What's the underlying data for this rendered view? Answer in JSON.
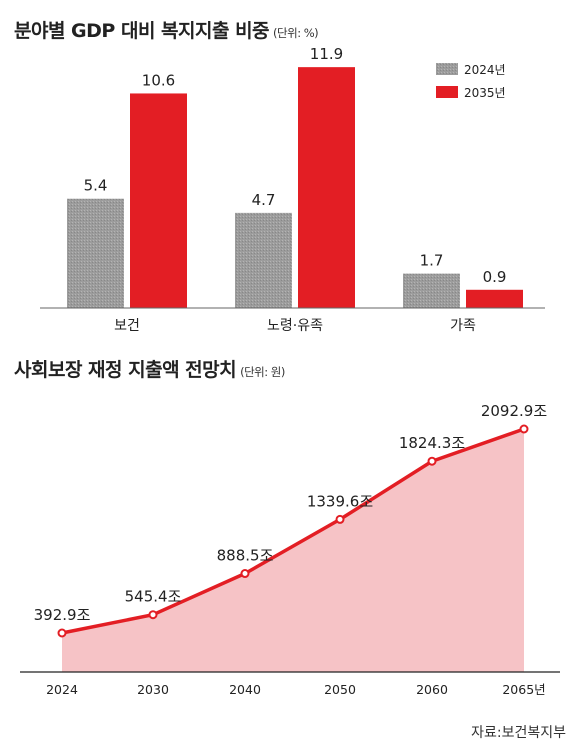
{
  "charts": {
    "bar": {
      "title": "분야별 GDP 대비 복지지출 비중",
      "unit": "(단위: %)"
    },
    "line": {
      "title": "사회보장 재정 지출액 전망치",
      "unit": "(단위: 원)"
    }
  },
  "chart_data": [
    {
      "type": "bar",
      "title": "분야별 GDP 대비 복지지출 비중",
      "unit": "(단위: %)",
      "categories": [
        "보건",
        "노령·유족",
        "가족"
      ],
      "series": [
        {
          "name": "2024년",
          "values": [
            5.4,
            4.7,
            1.7
          ],
          "color": "#9c9c9c"
        },
        {
          "name": "2035년",
          "values": [
            10.6,
            11.9,
            0.9
          ],
          "color": "#e31e24"
        }
      ],
      "ylim": [
        0,
        12.5
      ],
      "legend": "top-right",
      "grid": false
    },
    {
      "type": "area",
      "title": "사회보장 재정 지출액 전망치",
      "unit": "(단위: 원)",
      "x": [
        "2024",
        "2030",
        "2040",
        "2050",
        "2060",
        "2065년"
      ],
      "x_numeric": [
        2024,
        2030,
        2040,
        2050,
        2060,
        2065
      ],
      "values": [
        392.9,
        545.4,
        888.5,
        1339.6,
        1824.3,
        2092.9
      ],
      "value_labels": [
        "392.9조",
        "545.4조",
        "888.5조",
        "1339.6조",
        "1824.3조",
        "2092.9조"
      ],
      "ylim": [
        200,
        2200
      ],
      "line_color": "#e31e24",
      "fill_color": "#f6c3c6",
      "grid": false
    }
  ],
  "source": "자료:보건복지부"
}
